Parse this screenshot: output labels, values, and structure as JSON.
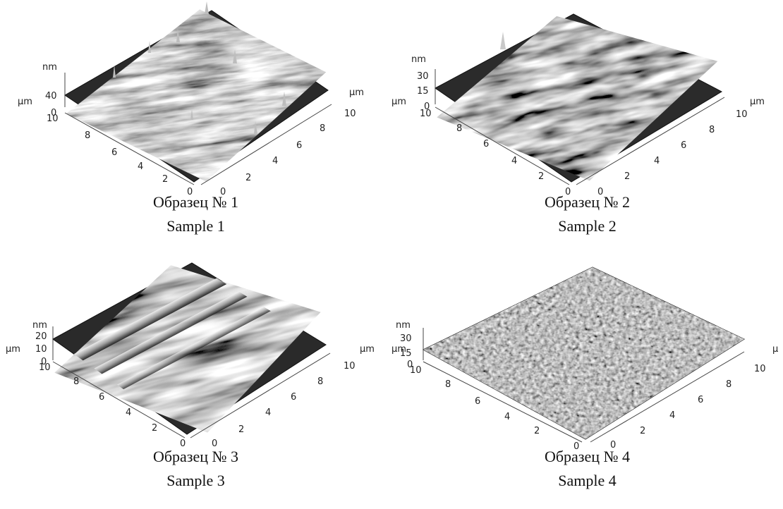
{
  "panels": [
    {
      "caption_ru": "Образец № 1",
      "caption_en": "Sample 1",
      "z_unit": "nm",
      "z_ticks": [
        "40",
        "0"
      ],
      "xy_unit_left": "µm",
      "xy_unit_right": "µm",
      "left_ticks": [
        "10",
        "8",
        "6",
        "4",
        "2",
        "0"
      ],
      "right_ticks": [
        "0",
        "2",
        "4",
        "6",
        "8",
        "10"
      ],
      "texture": "spiky-streaked"
    },
    {
      "caption_ru": "Образец № 2",
      "caption_en": "Sample 2",
      "z_unit": "nm",
      "z_ticks": [
        "30",
        "15",
        "0"
      ],
      "xy_unit_left": "µm",
      "xy_unit_right": "µm",
      "left_ticks": [
        "10",
        "8",
        "6",
        "4",
        "2",
        "0"
      ],
      "right_ticks": [
        "0",
        "2",
        "4",
        "6",
        "8",
        "10"
      ],
      "texture": "ridged"
    },
    {
      "caption_ru": "Образец № 3",
      "caption_en": "Sample 3",
      "z_unit": "nm",
      "z_ticks": [
        "20",
        "10",
        "0"
      ],
      "xy_unit_left": "µm",
      "xy_unit_right": "µm",
      "left_ticks": [
        "10",
        "8",
        "6",
        "4",
        "2",
        "0"
      ],
      "right_ticks": [
        "0",
        "2",
        "4",
        "6",
        "8",
        "10"
      ],
      "texture": "grooved"
    },
    {
      "caption_ru": "Образец № 4",
      "caption_en": "Sample 4",
      "z_unit": "nm",
      "z_ticks": [
        "30",
        "15",
        "0"
      ],
      "xy_unit_left": "µm",
      "xy_unit_right": "µ",
      "left_ticks": [
        "10",
        "8",
        "6",
        "4",
        "2",
        "0"
      ],
      "right_ticks": [
        "0",
        "2",
        "4",
        "6",
        "8",
        "10"
      ],
      "texture": "fine-grain"
    }
  ]
}
